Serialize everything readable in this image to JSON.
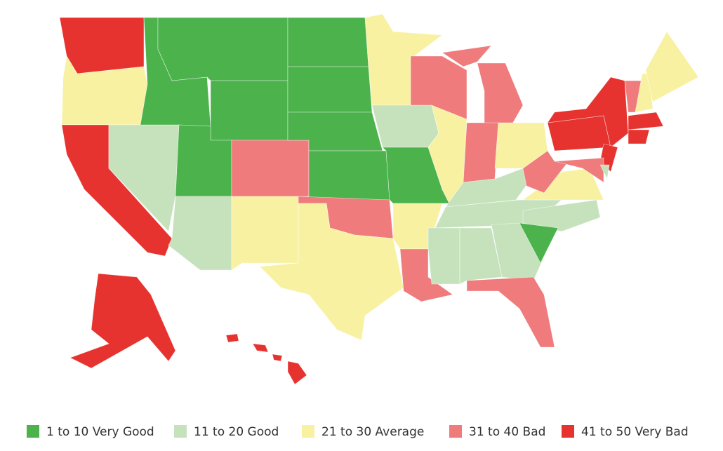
{
  "legend": {
    "items": [
      {
        "label": "1 to 10 Very Good",
        "color": "#4cb24c"
      },
      {
        "label": "11 to 20 Good",
        "color": "#c6e2bd"
      },
      {
        "label": "21 to 30 Average",
        "color": "#f8f1a2"
      },
      {
        "label": "31 to 40 Bad",
        "color": "#ef7b7c"
      },
      {
        "label": "41 to 50 Very Bad",
        "color": "#e6332f"
      }
    ]
  }
}
